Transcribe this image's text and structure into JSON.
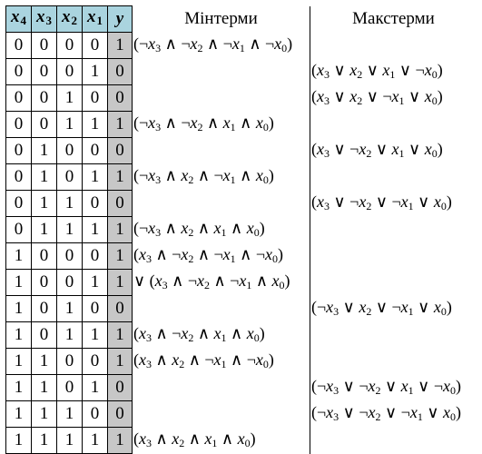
{
  "header": {
    "vars": [
      {
        "letter": "x",
        "index": "4"
      },
      {
        "letter": "x",
        "index": "3"
      },
      {
        "letter": "x",
        "index": "2"
      },
      {
        "letter": "x",
        "index": "1"
      }
    ],
    "y": "y",
    "minterms": "Мінтерми",
    "maxterms": "Макстерми"
  },
  "rows": [
    {
      "bits": [
        "0",
        "0",
        "0",
        "0"
      ],
      "y": "1",
      "min": "(¬x3 ∧ ¬x2 ∧ ¬x1 ∧ ¬x0)",
      "max": ""
    },
    {
      "bits": [
        "0",
        "0",
        "0",
        "1"
      ],
      "y": "0",
      "min": "",
      "max": "(x3 ∨ x2 ∨ x1 ∨ ¬x0)"
    },
    {
      "bits": [
        "0",
        "0",
        "1",
        "0"
      ],
      "y": "0",
      "min": "",
      "max": "(x3 ∨ x2 ∨ ¬x1 ∨ x0)"
    },
    {
      "bits": [
        "0",
        "0",
        "1",
        "1"
      ],
      "y": "1",
      "min": "(¬x3 ∧ ¬x2 ∧ x1 ∧ x0)",
      "max": ""
    },
    {
      "bits": [
        "0",
        "1",
        "0",
        "0"
      ],
      "y": "0",
      "min": "",
      "max": "(x3 ∨ ¬x2 ∨ x1 ∨ x0)"
    },
    {
      "bits": [
        "0",
        "1",
        "0",
        "1"
      ],
      "y": "1",
      "min": "(¬x3 ∧ x2 ∧ ¬x1 ∧ x0)",
      "max": ""
    },
    {
      "bits": [
        "0",
        "1",
        "1",
        "0"
      ],
      "y": "0",
      "min": "",
      "max": "(x3 ∨ ¬x2 ∨ ¬x1 ∨ x0)"
    },
    {
      "bits": [
        "0",
        "1",
        "1",
        "1"
      ],
      "y": "1",
      "min": "(¬x3 ∧ x2 ∧ x1 ∧ x0)",
      "max": ""
    },
    {
      "bits": [
        "1",
        "0",
        "0",
        "0"
      ],
      "y": "1",
      "min": "(x3 ∧ ¬x2 ∧ ¬x1 ∧ ¬x0)",
      "max": ""
    },
    {
      "bits": [
        "1",
        "0",
        "0",
        "1"
      ],
      "y": "1",
      "min": "∨ (x3 ∧ ¬x2 ∧ ¬x1 ∧ x0)",
      "max": ""
    },
    {
      "bits": [
        "1",
        "0",
        "1",
        "0"
      ],
      "y": "0",
      "min": "",
      "max": "(¬x3 ∨ x2 ∨ ¬x1 ∨ x0)"
    },
    {
      "bits": [
        "1",
        "0",
        "1",
        "1"
      ],
      "y": "1",
      "min": "(x3 ∧ ¬x2 ∧ x1 ∧ x0)",
      "max": ""
    },
    {
      "bits": [
        "1",
        "1",
        "0",
        "0"
      ],
      "y": "1",
      "min": "(x3 ∧ x2 ∧ ¬x1 ∧ ¬x0)",
      "max": ""
    },
    {
      "bits": [
        "1",
        "1",
        "0",
        "1"
      ],
      "y": "0",
      "min": "",
      "max": "(¬x3 ∨ ¬x2 ∨ x1 ∨ ¬x0)"
    },
    {
      "bits": [
        "1",
        "1",
        "1",
        "0"
      ],
      "y": "0",
      "min": "",
      "max": "(¬x3 ∨ ¬x2 ∨ ¬x1 ∨ x0)"
    },
    {
      "bits": [
        "1",
        "1",
        "1",
        "1"
      ],
      "y": "1",
      "min": "(x3 ∧ x2 ∧ x1 ∧ x0)",
      "max": ""
    }
  ]
}
